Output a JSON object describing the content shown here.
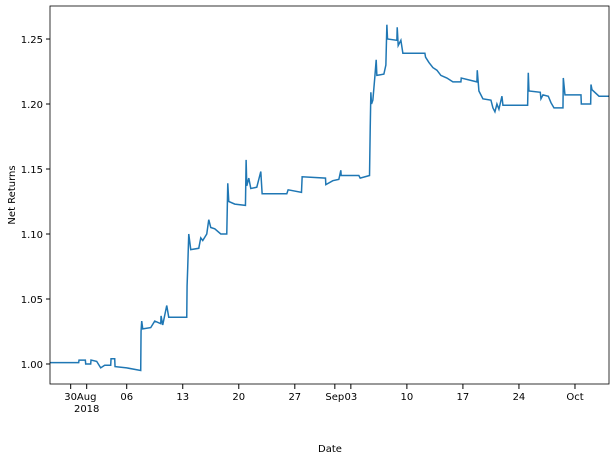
{
  "chart_data": {
    "type": "line",
    "xlabel": "Date",
    "ylabel": "Net Returns",
    "color": "#1f77b4",
    "x": [
      "2018-07-27T10:00",
      "2018-07-31T00:00",
      "2018-07-31T01:00",
      "2018-07-31T20:00",
      "2018-07-31T21:00",
      "2018-08-01T12:00",
      "2018-08-01T13:00",
      "2018-08-02T06:00",
      "2018-08-02T18:00",
      "2018-08-03T06:00",
      "2018-08-04T00:00",
      "2018-08-04T01:00",
      "2018-08-04T12:00",
      "2018-08-04T13:00",
      "2018-08-06T00:00",
      "2018-08-07T18:00",
      "2018-08-07T19:00",
      "2018-08-07T21:00",
      "2018-08-08T00:00",
      "2018-08-09T00:00",
      "2018-08-09T12:00",
      "2018-08-10T06:00",
      "2018-08-10T07:00",
      "2018-08-10T12:00",
      "2018-08-11T00:00",
      "2018-08-11T06:00",
      "2018-08-13T12:00",
      "2018-08-13T13:00",
      "2018-08-13T15:00",
      "2018-08-13T18:00",
      "2018-08-14T00:00",
      "2018-08-15T00:00",
      "2018-08-15T06:00",
      "2018-08-15T12:00",
      "2018-08-16T00:00",
      "2018-08-16T06:00",
      "2018-08-16T12:00",
      "2018-08-17T00:00",
      "2018-08-17T18:00",
      "2018-08-18T12:00",
      "2018-08-18T15:00",
      "2018-08-18T18:00",
      "2018-08-19T12:00",
      "2018-08-20T20:00",
      "2018-08-20T22:00",
      "2018-08-21T00:00",
      "2018-08-21T06:00",
      "2018-08-21T12:00",
      "2018-08-22T06:00",
      "2018-08-22T18:00",
      "2018-08-22T22:00",
      "2018-08-26T00:00",
      "2018-08-26T04:00",
      "2018-08-27T20:00",
      "2018-08-27T22:00",
      "2018-08-30T20:00",
      "2018-08-30T21:00",
      "2018-08-31T18:00",
      "2018-09-01T12:00",
      "2018-09-01T18:00",
      "2018-09-01T19:00",
      "2018-09-04T00:00",
      "2018-09-04T04:00",
      "2018-09-05T08:00",
      "2018-09-05T10:00",
      "2018-09-05T12:00",
      "2018-09-05T14:00",
      "2018-09-05T18:00",
      "2018-09-06T00:00",
      "2018-09-06T04:00",
      "2018-09-06T06:00",
      "2018-09-07T03:00",
      "2018-09-07T09:00",
      "2018-09-07T12:00",
      "2018-09-07T14:00",
      "2018-09-08T18:00",
      "2018-09-08T19:00",
      "2018-09-08T22:00",
      "2018-09-09T06:00",
      "2018-09-09T12:00",
      "2018-09-12T06:00",
      "2018-09-12T08:00",
      "2018-09-12T18:00",
      "2018-09-13T06:00",
      "2018-09-13T18:00",
      "2018-09-14T06:00",
      "2018-09-15T00:00",
      "2018-09-15T18:00",
      "2018-09-16T18:00",
      "2018-09-16T19:00",
      "2018-09-18T18:00",
      "2018-09-18T19:00",
      "2018-09-19T00:00",
      "2018-09-19T12:00",
      "2018-09-20T12:00",
      "2018-09-20T18:00",
      "2018-09-21T00:00",
      "2018-09-21T06:00",
      "2018-09-21T12:00",
      "2018-09-21T21:00",
      "2018-09-22T00:00",
      "2018-09-25T02:00",
      "2018-09-25T04:00",
      "2018-09-25T06:00",
      "2018-09-26T16:00",
      "2018-09-26T18:00",
      "2018-09-27T00:00",
      "2018-09-27T16:00",
      "2018-09-28T00:00",
      "2018-09-28T09:00",
      "2018-09-29T12:00",
      "2018-09-29T13:00",
      "2018-09-29T18:00",
      "2018-10-01T18:00",
      "2018-10-01T19:00",
      "2018-10-02T23:00",
      "2018-10-03T00:00",
      "2018-10-03T03:00",
      "2018-10-04T00:00",
      "2018-10-05T06:00"
    ],
    "values": [
      1.001,
      1.001,
      1.003,
      1.003,
      1.0,
      1.0,
      1.003,
      1.002,
      0.997,
      0.999,
      0.999,
      1.004,
      1.004,
      0.998,
      0.997,
      0.995,
      1.025,
      1.033,
      1.027,
      1.028,
      1.033,
      1.031,
      1.037,
      1.03,
      1.045,
      1.036,
      1.036,
      1.06,
      1.075,
      1.1,
      1.088,
      1.089,
      1.097,
      1.095,
      1.1,
      1.111,
      1.105,
      1.104,
      1.1,
      1.1,
      1.139,
      1.125,
      1.123,
      1.122,
      1.157,
      1.137,
      1.143,
      1.135,
      1.136,
      1.148,
      1.131,
      1.131,
      1.134,
      1.132,
      1.144,
      1.143,
      1.138,
      1.141,
      1.142,
      1.149,
      1.145,
      1.145,
      1.143,
      1.145,
      1.18,
      1.209,
      1.2,
      1.203,
      1.221,
      1.234,
      1.222,
      1.223,
      1.23,
      1.261,
      1.25,
      1.249,
      1.259,
      1.245,
      1.249,
      1.239,
      1.239,
      1.236,
      1.232,
      1.228,
      1.226,
      1.222,
      1.22,
      1.217,
      1.217,
      1.22,
      1.217,
      1.226,
      1.21,
      1.204,
      1.203,
      1.197,
      1.194,
      1.2,
      1.196,
      1.206,
      1.199,
      1.199,
      1.224,
      1.21,
      1.209,
      1.204,
      1.207,
      1.206,
      1.201,
      1.197,
      1.197,
      1.22,
      1.207,
      1.207,
      1.2,
      1.2,
      1.215,
      1.211,
      1.206,
      1.206
    ],
    "xlim": [
      "2018-07-27T10:00",
      "2018-10-05T06:00"
    ],
    "xticks": [
      {
        "value": "2018-07-30T00:00",
        "label": "30"
      },
      {
        "value": "2018-08-01T00:00",
        "label": "Aug\n2018"
      },
      {
        "value": "2018-08-06T00:00",
        "label": "06"
      },
      {
        "value": "2018-08-13T00:00",
        "label": "13"
      },
      {
        "value": "2018-08-20T00:00",
        "label": "20"
      },
      {
        "value": "2018-08-27T00:00",
        "label": "27"
      },
      {
        "value": "2018-09-01T00:00",
        "label": "Sep"
      },
      {
        "value": "2018-09-03T00:00",
        "label": "03"
      },
      {
        "value": "2018-09-10T00:00",
        "label": "10"
      },
      {
        "value": "2018-09-17T00:00",
        "label": "17"
      },
      {
        "value": "2018-09-24T00:00",
        "label": "24"
      },
      {
        "value": "2018-10-01T00:00",
        "label": "Oct"
      }
    ],
    "ylim": [
      0.9846,
      1.2754
    ],
    "yticks": [
      {
        "value": 1.0,
        "label": "1.00"
      },
      {
        "value": 1.05,
        "label": "1.05"
      },
      {
        "value": 1.1,
        "label": "1.10"
      },
      {
        "value": 1.15,
        "label": "1.15"
      },
      {
        "value": 1.2,
        "label": "1.20"
      },
      {
        "value": 1.25,
        "label": "1.25"
      }
    ]
  }
}
